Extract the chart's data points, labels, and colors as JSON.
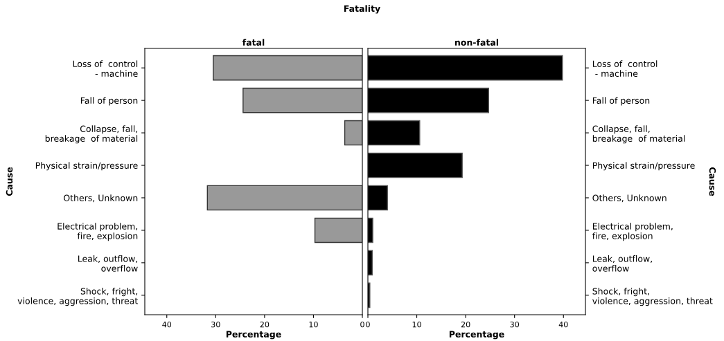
{
  "chart_data": [
    {
      "type": "bar",
      "orientation": "horizontal",
      "title": "Fatality",
      "subtitle": "fatal",
      "xlabel": "Percentage",
      "ylabel": "Cause",
      "categories": [
        "Loss of  control\n - machine",
        "Fall of person",
        "Collapse, fall,\nbreakage  of material",
        "Physical strain/pressure",
        "Others, Unknown",
        "Electrical problem,\nfire, explosion",
        "Leak, outflow,\noverflow",
        "Shock, fright,\nviolence, aggression, threat"
      ],
      "values": [
        30.5,
        24.4,
        3.6,
        0,
        31.7,
        9.7,
        0,
        0
      ],
      "color": "#999999",
      "xlim": [
        44.5,
        0
      ],
      "xticks": [
        40,
        30,
        20,
        10,
        0
      ],
      "grid": false
    },
    {
      "type": "bar",
      "orientation": "horizontal",
      "subtitle": "non-fatal",
      "xlabel": "Percentage",
      "ylabel": "Cause",
      "categories": [
        "Loss of  control\n - machine",
        "Fall of person",
        "Collapse, fall,\nbreakage  of material",
        "Physical strain/pressure",
        "Others, Unknown",
        "Electrical problem,\nfire, explosion",
        "Leak, outflow,\noverflow",
        "Shock, fright,\nviolence, aggression, threat"
      ],
      "values": [
        39.8,
        24.7,
        10.6,
        19.3,
        4.0,
        1.0,
        0.9,
        0.4
      ],
      "color": "#000000",
      "xlim": [
        0,
        44.5
      ],
      "xticks": [
        0,
        10,
        20,
        30,
        40
      ],
      "grid": false
    }
  ]
}
